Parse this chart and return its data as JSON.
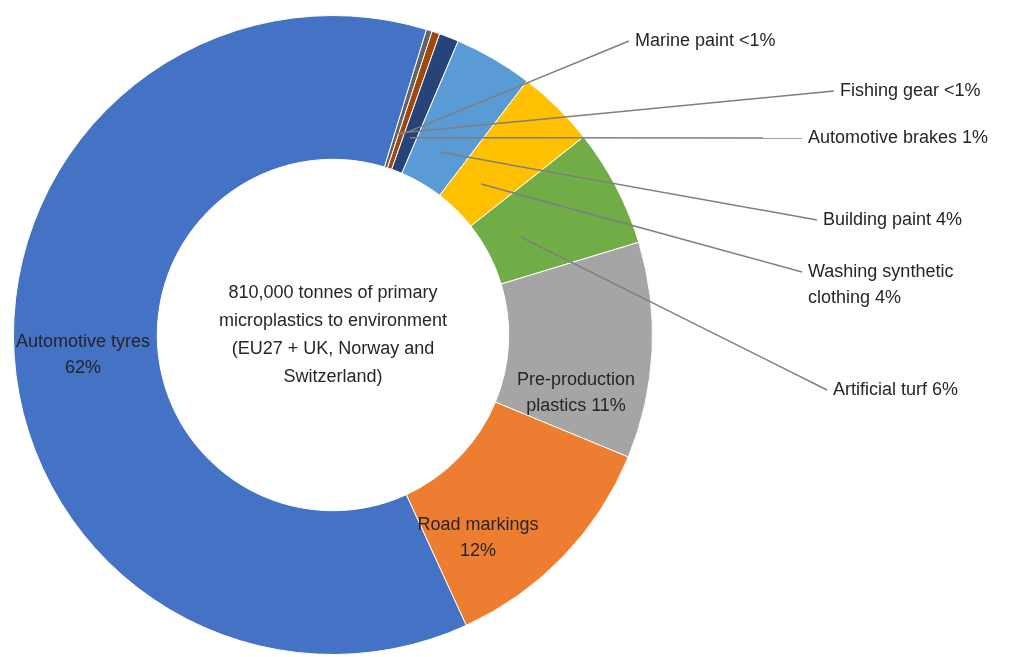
{
  "chart_data": {
    "type": "donut",
    "categories": [
      "Fishing gear",
      "Marine paint",
      "Automotive brakes",
      "Building paint",
      "Washing synthetic clothing",
      "Artificial turf",
      "Pre-production plastics",
      "Road markings",
      "Automotive tyres"
    ],
    "values": [
      0.3,
      0.4,
      1,
      4,
      4,
      6,
      11,
      12,
      62
    ],
    "value_labels": [
      "<1%",
      "<1%",
      "1%",
      "4%",
      "4%",
      "6%",
      "11%",
      "12%",
      "62%"
    ],
    "colors": [
      "#636363",
      "#9e480e",
      "#264478",
      "#5b9bd5",
      "#ffc000",
      "#70ad47",
      "#a5a5a5",
      "#ed7d31",
      "#4472c4"
    ],
    "annotations": [
      "810,000 tonnes of primary microplastics to environment (EU27 + UK, Norway and Switzerland)"
    ],
    "legend": false
  }
}
